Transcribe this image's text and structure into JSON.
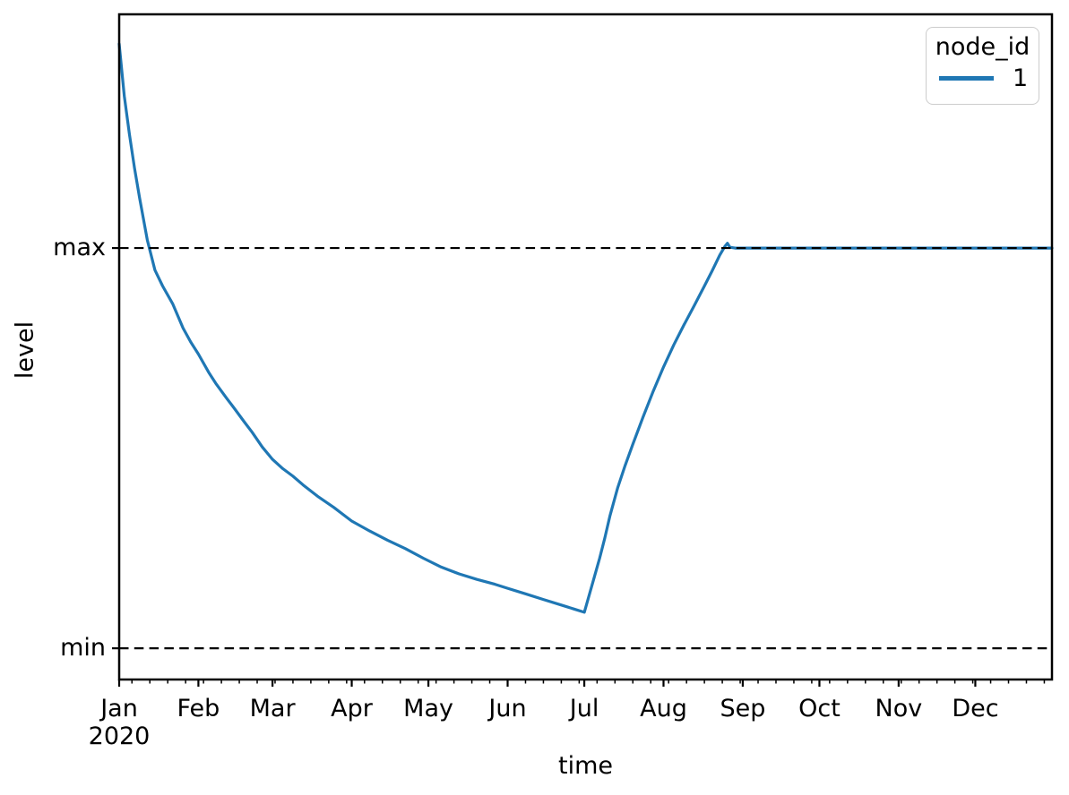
{
  "figure": {
    "background": "#ffffff",
    "text_color": "#000000",
    "axis_color": "#000000"
  },
  "chart_data": {
    "type": "line",
    "title": "",
    "xlabel": "time",
    "ylabel": "level",
    "x_axis": {
      "unit": "day_of_year_2020",
      "range": [
        0,
        365
      ],
      "major_ticks": [
        {
          "label": "Jan",
          "day": 0,
          "year_label": "2020"
        },
        {
          "label": "Feb",
          "day": 31
        },
        {
          "label": "Mar",
          "day": 60
        },
        {
          "label": "Apr",
          "day": 91
        },
        {
          "label": "May",
          "day": 121
        },
        {
          "label": "Jun",
          "day": 152
        },
        {
          "label": "Jul",
          "day": 182
        },
        {
          "label": "Aug",
          "day": 213
        },
        {
          "label": "Sep",
          "day": 244
        },
        {
          "label": "Oct",
          "day": 274
        },
        {
          "label": "Nov",
          "day": 305
        },
        {
          "label": "Dec",
          "day": 335
        }
      ],
      "minor_ticks": {
        "first_day": 5,
        "interval_days": 7,
        "last_day": 362
      }
    },
    "y_axis": {
      "range": [
        -0.078,
        1.584
      ],
      "major_ticks": [
        {
          "label": "max",
          "value": 1
        },
        {
          "label": "min",
          "value": 0
        }
      ]
    },
    "reference_lines": [
      {
        "name": "max-reference-line",
        "value": 1,
        "style": "dashed",
        "color": "#000000"
      },
      {
        "name": "min-reference-line",
        "value": 0,
        "style": "dashed",
        "color": "#000000"
      }
    ],
    "legend": {
      "title": "node_id",
      "position": "upper-right",
      "entries": [
        {
          "label": "1",
          "color": "#1f77b4"
        }
      ]
    },
    "series": [
      {
        "name": "1",
        "color": "#1f77b4",
        "points": [
          [
            0,
            1.51
          ],
          [
            2,
            1.38
          ],
          [
            4,
            1.285
          ],
          [
            6,
            1.2
          ],
          [
            8,
            1.125
          ],
          [
            11,
            1.02
          ],
          [
            14,
            0.945
          ],
          [
            17,
            0.905
          ],
          [
            21,
            0.86
          ],
          [
            25,
            0.8
          ],
          [
            28,
            0.765
          ],
          [
            31,
            0.735
          ],
          [
            35,
            0.69
          ],
          [
            38,
            0.66
          ],
          [
            42,
            0.625
          ],
          [
            45,
            0.6
          ],
          [
            49,
            0.565
          ],
          [
            52,
            0.54
          ],
          [
            56,
            0.503
          ],
          [
            60,
            0.472
          ],
          [
            64,
            0.449
          ],
          [
            68,
            0.43
          ],
          [
            72,
            0.408
          ],
          [
            78,
            0.378
          ],
          [
            84,
            0.352
          ],
          [
            91,
            0.318
          ],
          [
            98,
            0.293
          ],
          [
            105,
            0.27
          ],
          [
            112,
            0.249
          ],
          [
            119,
            0.225
          ],
          [
            126,
            0.203
          ],
          [
            133,
            0.186
          ],
          [
            140,
            0.172
          ],
          [
            147,
            0.16
          ],
          [
            152,
            0.15
          ],
          [
            159,
            0.136
          ],
          [
            166,
            0.122
          ],
          [
            173,
            0.108
          ],
          [
            178,
            0.098
          ],
          [
            182,
            0.09
          ],
          [
            184,
            0.135
          ],
          [
            186,
            0.18
          ],
          [
            188,
            0.225
          ],
          [
            190,
            0.275
          ],
          [
            192,
            0.33
          ],
          [
            195,
            0.4
          ],
          [
            198,
            0.457
          ],
          [
            201,
            0.51
          ],
          [
            205,
            0.578
          ],
          [
            209,
            0.643
          ],
          [
            213,
            0.703
          ],
          [
            217,
            0.758
          ],
          [
            221,
            0.808
          ],
          [
            225,
            0.856
          ],
          [
            229,
            0.905
          ],
          [
            232,
            0.943
          ],
          [
            235,
            0.982
          ],
          [
            237,
            1.004
          ],
          [
            238,
            1.012
          ],
          [
            239,
            1.002
          ],
          [
            241,
            1.0
          ],
          [
            260,
            1.0
          ],
          [
            290,
            1.0
          ],
          [
            320,
            1.0
          ],
          [
            350,
            1.0
          ],
          [
            365,
            1.0
          ]
        ]
      }
    ]
  }
}
